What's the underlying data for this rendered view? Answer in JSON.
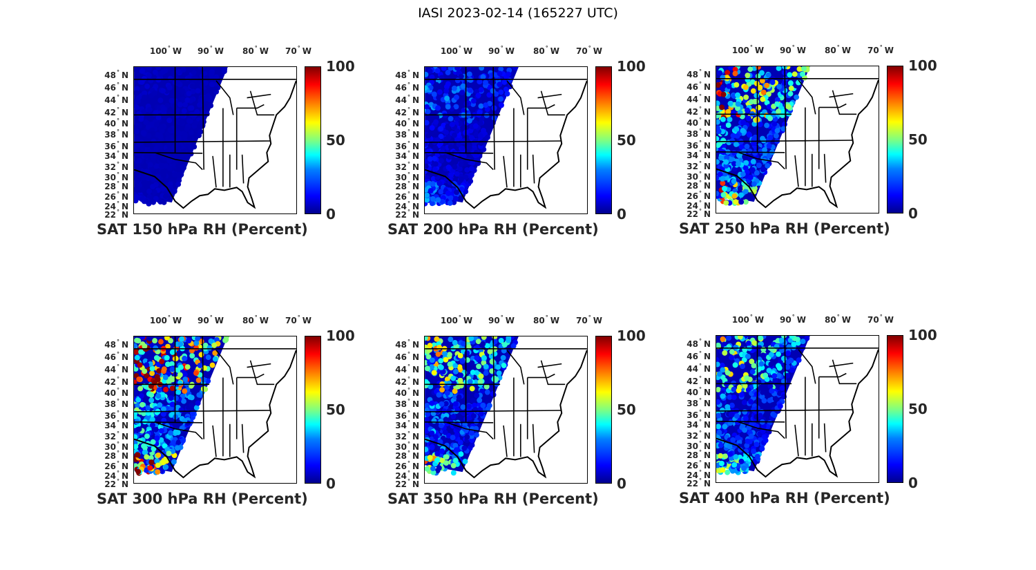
{
  "title": "IASI 2023-02-14 (165227 UTC)",
  "lon_ticks": [
    "100",
    "90",
    "80",
    "70"
  ],
  "lon_suffix": "W",
  "lat_ticks": [
    "48",
    "46",
    "44",
    "42",
    "40",
    "38",
    "36",
    "34",
    "32",
    "30",
    "28",
    "26",
    "24",
    "22"
  ],
  "lat_suffix": "N",
  "colorbar": {
    "ticks": [
      "100",
      "50",
      "0"
    ],
    "range": [
      0,
      100
    ],
    "colormap": "jet"
  },
  "panels": [
    {
      "title": "SAT 150 hPa RH (Percent)",
      "moisture": 0.02
    },
    {
      "title": "SAT 200 hPa RH (Percent)",
      "moisture": 0.15
    },
    {
      "title": "SAT 250 hPa RH (Percent)",
      "moisture": 0.55
    },
    {
      "title": "SAT 300 hPa RH (Percent)",
      "moisture": 0.7
    },
    {
      "title": "SAT 350 hPa RH (Percent)",
      "moisture": 0.45
    },
    {
      "title": "SAT 400 hPa RH (Percent)",
      "moisture": 0.4
    }
  ]
}
